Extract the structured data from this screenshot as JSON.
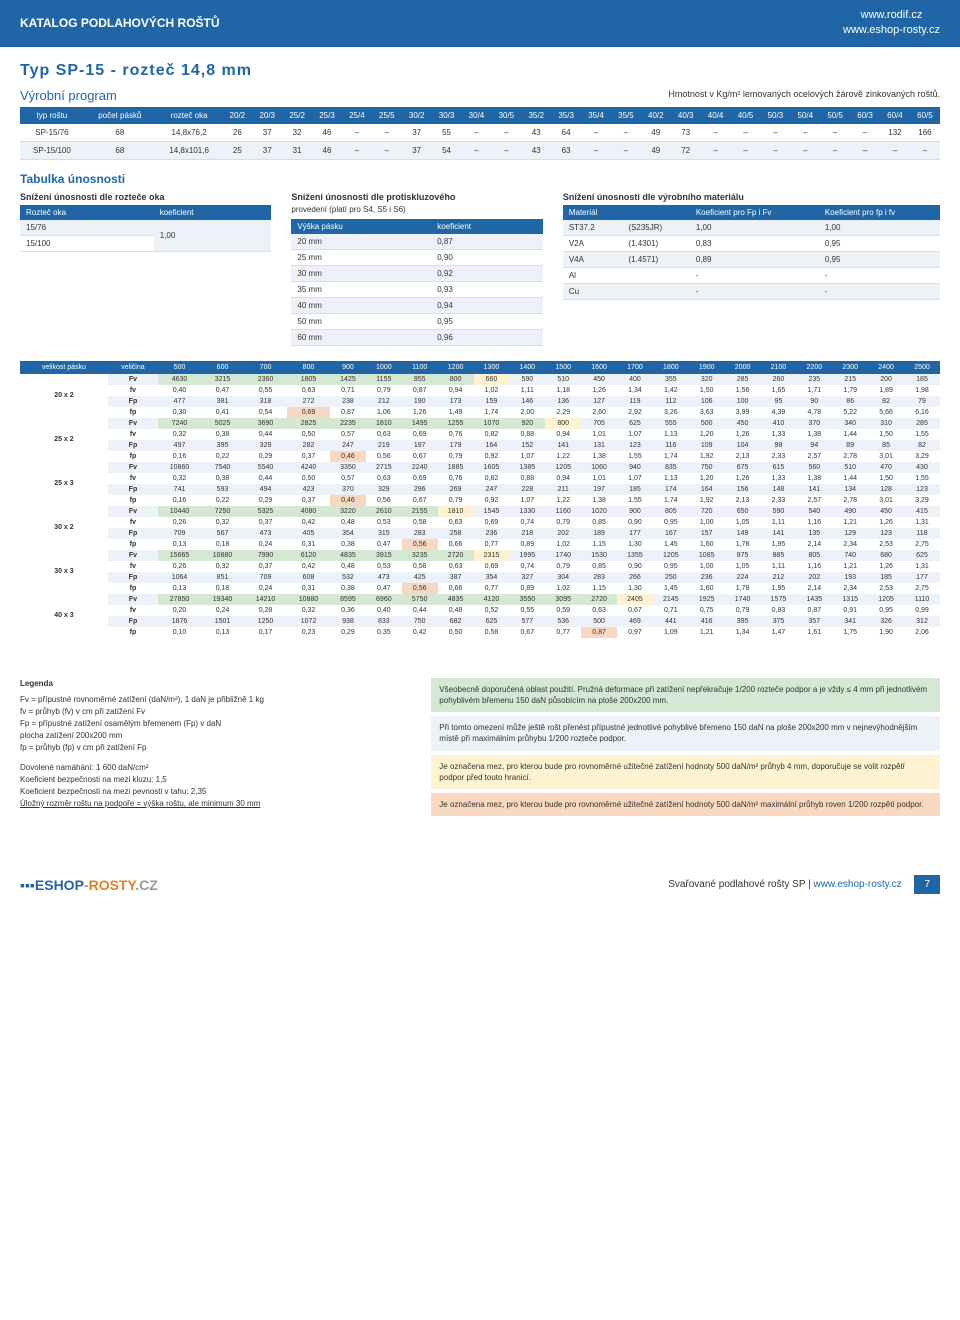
{
  "header": {
    "title": "KATALOG PODLAHOVÝCH ROŠTŮ",
    "url1": "www.rodif.cz",
    "url2": "www.eshop-rosty.cz"
  },
  "typeTitle": "Typ SP-15 - rozteč 14,8 mm",
  "subtitle": "Výrobní program",
  "rightNote": "Hmotnost v Kg/m² lemovaných ocelových žárově zinkovaných roštů.",
  "t1": {
    "headers": [
      "typ roštu",
      "počet pásků",
      "rozteč oka",
      "20/2",
      "20/3",
      "25/2",
      "25/3",
      "25/4",
      "25/5",
      "30/2",
      "30/3",
      "30/4",
      "30/5",
      "35/2",
      "35/3",
      "35/4",
      "35/5",
      "40/2",
      "40/3",
      "40/4",
      "40/5",
      "50/3",
      "50/4",
      "50/5",
      "60/3",
      "60/4",
      "60/5"
    ],
    "rows": [
      [
        "SP-15/76",
        "68",
        "14,8x76,2",
        "26",
        "37",
        "32",
        "46",
        "–",
        "–",
        "37",
        "55",
        "–",
        "–",
        "43",
        "64",
        "–",
        "–",
        "49",
        "73",
        "–",
        "–",
        "–",
        "–",
        "–",
        "–",
        "132",
        "166"
      ],
      [
        "SP-15/100",
        "68",
        "14,8x101,6",
        "25",
        "37",
        "31",
        "46",
        "–",
        "–",
        "37",
        "54",
        "–",
        "–",
        "43",
        "63",
        "–",
        "–",
        "49",
        "72",
        "–",
        "–",
        "–",
        "–",
        "–",
        "–",
        "–",
        "–"
      ]
    ]
  },
  "sectionTitle": "Tabulka únosnosti",
  "col1": {
    "title": "Snížení únosnosti dle rozteče oka",
    "h": [
      "Rozteč oka",
      "koeficient"
    ],
    "rows": [
      [
        "15/76",
        "1,00"
      ],
      [
        "15/100",
        ""
      ]
    ]
  },
  "col2": {
    "title": "Snížení únosnosti dle protiskluzového",
    "sub": "provedení (platí pro S4, S5 i S6)",
    "h": [
      "Výška pásku",
      "koeficient"
    ],
    "rows": [
      [
        "20 mm",
        "0,87"
      ],
      [
        "25 mm",
        "0,90"
      ],
      [
        "30 mm",
        "0,92"
      ],
      [
        "35 mm",
        "0,93"
      ],
      [
        "40 mm",
        "0,94"
      ],
      [
        "50 mm",
        "0,95"
      ],
      [
        "60 mm",
        "0,96"
      ]
    ]
  },
  "col3": {
    "title": "Snížení únosnosti dle výrobního materiálu",
    "h": [
      "Materiál",
      "",
      "Koeficient pro Fp i Fv",
      "Koeficient pro fp i fv"
    ],
    "rows": [
      [
        "ST37.2",
        "(S235JR)",
        "1,00",
        "1,00"
      ],
      [
        "V2A",
        "(1.4301)",
        "0,83",
        "0,95"
      ],
      [
        "V4A",
        "(1.4571)",
        "0,89",
        "0,95"
      ],
      [
        "Al",
        "",
        "-",
        "-"
      ],
      [
        "Cu",
        "",
        "-",
        "-"
      ]
    ]
  },
  "main": {
    "h": [
      "velikost pásku",
      "veličina",
      "500",
      "600",
      "700",
      "800",
      "900",
      "1000",
      "1100",
      "1200",
      "1300",
      "1400",
      "1500",
      "1600",
      "1700",
      "1800",
      "1900",
      "2000",
      "2100",
      "2200",
      "2300",
      "2400",
      "2500"
    ],
    "sizes": [
      "20 x 2",
      "25 x 2",
      "25 x 3",
      "30 x 2",
      "30 x 3",
      "40 x 3"
    ],
    "data": [
      [
        [
          "Fv",
          "4630",
          "3215",
          "2360",
          "1805",
          "1425",
          "1155",
          "955",
          "800",
          "660",
          "590",
          "510",
          "450",
          "400",
          "355",
          "320",
          "285",
          "260",
          "235",
          "215",
          "200",
          "185"
        ],
        [
          "fv",
          "0,40",
          "0,47",
          "0,55",
          "0,63",
          "0,71",
          "0,79",
          "0,87",
          "0,94",
          "1,02",
          "1,11",
          "1,18",
          "1,26",
          "1,34",
          "1,42",
          "1,50",
          "1,56",
          "1,65",
          "1,71",
          "1,79",
          "1,89",
          "1,98"
        ],
        [
          "Fp",
          "477",
          "381",
          "318",
          "272",
          "238",
          "212",
          "190",
          "173",
          "159",
          "146",
          "136",
          "127",
          "119",
          "112",
          "106",
          "100",
          "95",
          "90",
          "86",
          "82",
          "79"
        ],
        [
          "fp",
          "0,30",
          "0,41",
          "0,54",
          "0,69",
          "0,87",
          "1,06",
          "1,26",
          "1,49",
          "1,74",
          "2,00",
          "2,29",
          "2,60",
          "2,92",
          "3,26",
          "3,63",
          "3,99",
          "4,39",
          "4,78",
          "5,22",
          "5,66",
          "6,16"
        ]
      ],
      [
        [
          "Fv",
          "7240",
          "5025",
          "3690",
          "2825",
          "2235",
          "1810",
          "1495",
          "1255",
          "1070",
          "920",
          "800",
          "705",
          "625",
          "555",
          "500",
          "450",
          "410",
          "370",
          "340",
          "310",
          "285"
        ],
        [
          "fv",
          "0,32",
          "0,38",
          "0,44",
          "0,50",
          "0,57",
          "0,63",
          "0,69",
          "0,76",
          "0,82",
          "0,88",
          "0,94",
          "1,01",
          "1,07",
          "1,13",
          "1,20",
          "1,26",
          "1,33",
          "1,38",
          "1,44",
          "1,50",
          "1,55"
        ],
        [
          "Fp",
          "497",
          "395",
          "329",
          "282",
          "247",
          "219",
          "197",
          "179",
          "164",
          "152",
          "141",
          "131",
          "123",
          "116",
          "109",
          "104",
          "98",
          "94",
          "89",
          "85",
          "82"
        ],
        [
          "fp",
          "0,16",
          "0,22",
          "0,29",
          "0,37",
          "0,46",
          "0,56",
          "0,67",
          "0,79",
          "0,92",
          "1,07",
          "1,22",
          "1,38",
          "1,55",
          "1,74",
          "1,92",
          "2,13",
          "2,33",
          "2,57",
          "2,78",
          "3,01",
          "3,29"
        ]
      ],
      [
        [
          "Fv",
          "10860",
          "7540",
          "5540",
          "4240",
          "3350",
          "2715",
          "2240",
          "1885",
          "1605",
          "1385",
          "1205",
          "1060",
          "940",
          "835",
          "750",
          "675",
          "615",
          "560",
          "510",
          "470",
          "430"
        ],
        [
          "fv",
          "0,32",
          "0,38",
          "0,44",
          "0,50",
          "0,57",
          "0,63",
          "0,69",
          "0,76",
          "0,82",
          "0,88",
          "0,94",
          "1,01",
          "1,07",
          "1,13",
          "1,20",
          "1,26",
          "1,33",
          "1,38",
          "1,44",
          "1,50",
          "1,55"
        ],
        [
          "Fp",
          "741",
          "593",
          "494",
          "423",
          "370",
          "329",
          "296",
          "269",
          "247",
          "228",
          "211",
          "197",
          "185",
          "174",
          "164",
          "156",
          "148",
          "141",
          "134",
          "128",
          "123"
        ],
        [
          "fp",
          "0,16",
          "0,22",
          "0,29",
          "0,37",
          "0,46",
          "0,56",
          "0,67",
          "0,79",
          "0,92",
          "1,07",
          "1,22",
          "1,38",
          "1,55",
          "1,74",
          "1,92",
          "2,13",
          "2,33",
          "2,57",
          "2,78",
          "3,01",
          "3,29"
        ]
      ],
      [
        [
          "Fv",
          "10440",
          "7250",
          "5325",
          "4080",
          "3220",
          "2610",
          "2155",
          "1810",
          "1545",
          "1330",
          "1160",
          "1020",
          "900",
          "805",
          "720",
          "650",
          "590",
          "540",
          "490",
          "450",
          "415"
        ],
        [
          "fv",
          "0,26",
          "0,32",
          "0,37",
          "0,42",
          "0,48",
          "0,53",
          "0,58",
          "0,63",
          "0,69",
          "0,74",
          "0,79",
          "0,85",
          "0,90",
          "0,95",
          "1,00",
          "1,05",
          "1,11",
          "1,16",
          "1,21",
          "1,26",
          "1,31"
        ],
        [
          "Fp",
          "709",
          "567",
          "473",
          "405",
          "354",
          "315",
          "283",
          "258",
          "236",
          "218",
          "202",
          "189",
          "177",
          "167",
          "157",
          "149",
          "141",
          "135",
          "129",
          "123",
          "118"
        ],
        [
          "fp",
          "0,13",
          "0,18",
          "0,24",
          "0,31",
          "0,38",
          "0,47",
          "0,56",
          "0,66",
          "0,77",
          "0,89",
          "1,02",
          "1,15",
          "1,30",
          "1,45",
          "1,60",
          "1,78",
          "1,95",
          "2,14",
          "2,34",
          "2,53",
          "2,75"
        ]
      ],
      [
        [
          "Fv",
          "15665",
          "10880",
          "7990",
          "6120",
          "4835",
          "3915",
          "3235",
          "2720",
          "2315",
          "1995",
          "1740",
          "1530",
          "1355",
          "1205",
          "1085",
          "975",
          "885",
          "805",
          "740",
          "680",
          "625"
        ],
        [
          "fv",
          "0,26",
          "0,32",
          "0,37",
          "0,42",
          "0,48",
          "0,53",
          "0,58",
          "0,63",
          "0,69",
          "0,74",
          "0,79",
          "0,85",
          "0,90",
          "0,95",
          "1,00",
          "1,05",
          "1,11",
          "1,16",
          "1,21",
          "1,26",
          "1,31"
        ],
        [
          "Fp",
          "1064",
          "851",
          "709",
          "608",
          "532",
          "473",
          "425",
          "387",
          "354",
          "327",
          "304",
          "283",
          "266",
          "250",
          "236",
          "224",
          "212",
          "202",
          "193",
          "185",
          "177"
        ],
        [
          "fp",
          "0,13",
          "0,18",
          "0,24",
          "0,31",
          "0,38",
          "0,47",
          "0,56",
          "0,66",
          "0,77",
          "0,89",
          "1,02",
          "1,15",
          "1,30",
          "1,45",
          "1,60",
          "1,78",
          "1,95",
          "2,14",
          "2,34",
          "2,53",
          "2,75"
        ]
      ],
      [
        [
          "Fv",
          "27850",
          "19340",
          "14210",
          "10880",
          "8595",
          "6960",
          "5750",
          "4835",
          "4120",
          "3550",
          "3095",
          "2720",
          "2405",
          "2145",
          "1925",
          "1740",
          "1575",
          "1435",
          "1315",
          "1205",
          "1110"
        ],
        [
          "fv",
          "0,20",
          "0,24",
          "0,28",
          "0,32",
          "0,36",
          "0,40",
          "0,44",
          "0,48",
          "0,52",
          "0,55",
          "0,59",
          "0,63",
          "0,67",
          "0,71",
          "0,75",
          "0,79",
          "0,83",
          "0,87",
          "0,91",
          "0,95",
          "0,99"
        ],
        [
          "Fp",
          "1876",
          "1501",
          "1250",
          "1072",
          "938",
          "833",
          "750",
          "682",
          "625",
          "577",
          "536",
          "500",
          "469",
          "441",
          "416",
          "395",
          "375",
          "357",
          "341",
          "326",
          "312"
        ],
        [
          "fp",
          "0,10",
          "0,13",
          "0,17",
          "0,23",
          "0,29",
          "0,35",
          "0,42",
          "0,50",
          "0,58",
          "0,67",
          "0,77",
          "0,87",
          "0,97",
          "1,09",
          "1,21",
          "1,34",
          "1,47",
          "1,61",
          "1,75",
          "1,90",
          "2,06"
        ]
      ]
    ],
    "hl": {
      "0": {
        "Fv": {
          "g": 8,
          "y": 9
        },
        "fp": {
          "o": 4
        }
      },
      "1": {
        "Fv": {
          "g": 10,
          "y": 11
        },
        "fp": {
          "o": 5
        }
      },
      "2": {
        "fp": {
          "o": 5
        }
      },
      "3": {
        "Fv": {
          "g": 7,
          "y": 8
        },
        "fp": {
          "o": 7
        }
      },
      "4": {
        "Fv": {
          "g": 8,
          "y": 9
        },
        "fp": {
          "o": 7
        }
      },
      "5": {
        "Fv": {
          "g": 12,
          "y": 13
        },
        "fp": {
          "o": 12
        }
      }
    }
  },
  "legend": {
    "title": "Legenda",
    "items": [
      "Fv = přípustné rovnoměrné zatížení (daN/m²), 1 daN je přibližně 1 kg",
      "fv = průhyb (fv) v cm při zatížení Fv",
      "Fp = přípustné zatížení osamělým břemenem (Fp) v daN",
      "       plocha zatížení 200x200 mm",
      "fp = průhyb (fp) v cm při zatížení Fp"
    ],
    "lines": [
      "Dovolené namáhání: 1 600 daN/cm²",
      "Koeficient bezpečnosti na mezi kluzu: 1,5",
      "Koeficient bezpečnosti na mezi pevnosti v tahu: 2,35",
      "Úložný rozměr roštu na podpoře = výška roštu, ale minimum 30 mm"
    ],
    "boxes": [
      {
        "cls": "lb-g",
        "txt": "Všeobecně doporučená oblast použití. Pružná deformace při zatížení nepřekračuje 1/200 rozteče podpor a je vždy ≤ 4 mm při jednotlivém pohyblivém břemenu 150 daN působícím na ploše 200x200 mm."
      },
      {
        "cls": "lb-b",
        "txt": "Při tomto omezení může ještě rošt přenést přípustné jednotlivé pohyblivé břemeno 150 daN na ploše 200x200 mm v nejnevýhodnějším místě při maximálním průhybu 1/200 rozteče podpor."
      },
      {
        "cls": "lb-y",
        "txt": "Je označena mez, pro kterou bude pro rovnoměrné užitečné zatížení hodnoty 500 daN/m² průhyb 4 mm, doporučuje se volit rozpětí podpor před touto hranicí."
      },
      {
        "cls": "lb-o",
        "txt": "Je označena mez, pro kterou bude pro rovnoměrné užitečné zatížení hodnoty 500 daN/m² maximální průhyb roven 1/200 rozpětí podpor."
      }
    ]
  },
  "footer": {
    "txt": "Svařované podlahové rošty SP",
    "url": "www.eshop-rosty.cz",
    "page": "7"
  }
}
